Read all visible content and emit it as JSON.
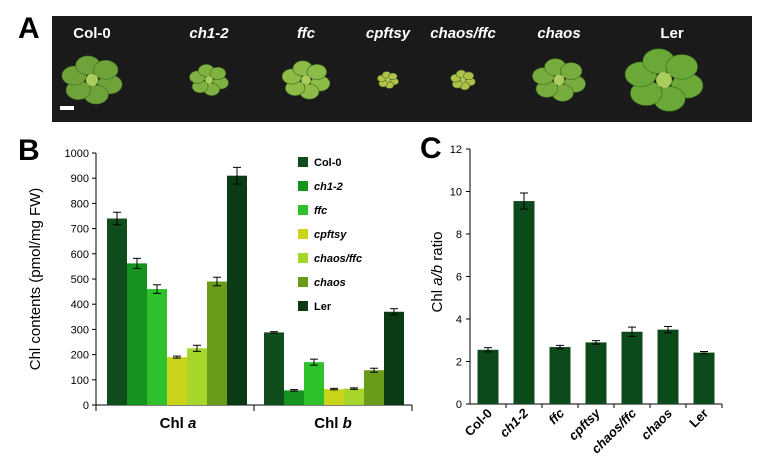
{
  "panels": {
    "a": "A",
    "b": "B",
    "c": "C"
  },
  "photo": {
    "background": "#1a1a1a",
    "genotypes": [
      {
        "label": "Col-0",
        "italic": false
      },
      {
        "label": "ch1-2",
        "italic": true
      },
      {
        "label": "ffc",
        "italic": true
      },
      {
        "label": "cpftsy",
        "italic": true
      },
      {
        "label": "chaos/ffc",
        "italic": true
      },
      {
        "label": "chaos",
        "italic": true
      },
      {
        "label": "Ler",
        "italic": false
      }
    ]
  },
  "series_colors": [
    "#0f4d1c",
    "#15931e",
    "#2ec12b",
    "#c9d41a",
    "#a6d52c",
    "#6a9c1a",
    "#0a3b14"
  ],
  "chart_data": [
    {
      "type": "bar",
      "panel": "B",
      "categories": [
        "Chl a",
        "Chl b"
      ],
      "category_parts": [
        {
          "prefix": "Chl ",
          "italic": "a"
        },
        {
          "prefix": "Chl ",
          "italic": "b"
        }
      ],
      "ylabel": "Chl contents (pmol/mg FW)",
      "ylim": [
        0,
        1000
      ],
      "yticks": [
        0,
        100,
        200,
        300,
        400,
        500,
        600,
        700,
        800,
        900,
        1000
      ],
      "legend_position": "top-right",
      "series": [
        {
          "name": "Col-0",
          "italic": false,
          "values": [
            740,
            288
          ],
          "errors": [
            25,
            3
          ]
        },
        {
          "name": "ch1-2",
          "italic": true,
          "values": [
            562,
            58
          ],
          "errors": [
            20,
            3
          ]
        },
        {
          "name": "ffc",
          "italic": true,
          "values": [
            460,
            170
          ],
          "errors": [
            17,
            12
          ]
        },
        {
          "name": "cpftsy",
          "italic": true,
          "values": [
            190,
            63
          ],
          "errors": [
            4,
            3
          ]
        },
        {
          "name": "chaos/ffc",
          "italic": true,
          "values": [
            225,
            65
          ],
          "errors": [
            12,
            3
          ]
        },
        {
          "name": "chaos",
          "italic": true,
          "values": [
            490,
            138
          ],
          "errors": [
            17,
            8
          ]
        },
        {
          "name": "Ler",
          "italic": false,
          "values": [
            910,
            370
          ],
          "errors": [
            33,
            12
          ]
        }
      ]
    },
    {
      "type": "bar",
      "panel": "C",
      "categories": [
        "Col-0",
        "ch1-2",
        "ffc",
        "cpftsy",
        "chaos/ffc",
        "chaos",
        "Ler"
      ],
      "italic_categories": [
        false,
        true,
        true,
        true,
        true,
        true,
        false
      ],
      "ylabel_parts": [
        "Chl ",
        "a/b",
        " ratio"
      ],
      "ylim": [
        0,
        12
      ],
      "yticks": [
        0,
        2,
        4,
        6,
        8,
        10,
        12
      ],
      "values": [
        2.55,
        9.55,
        2.68,
        2.9,
        3.4,
        3.5,
        2.42
      ],
      "errors": [
        0.1,
        0.38,
        0.08,
        0.08,
        0.22,
        0.15,
        0.05
      ],
      "bar_color": "#0d4a1b"
    }
  ]
}
